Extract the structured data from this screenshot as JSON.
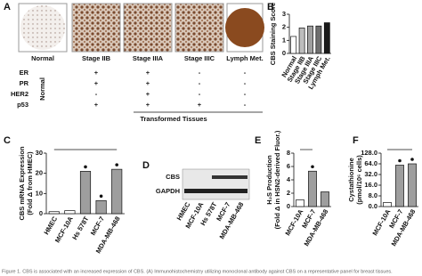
{
  "panel_labels": [
    "A",
    "B",
    "C",
    "D",
    "E",
    "F"
  ],
  "tissue": {
    "images": [
      "Normal",
      "Stage IIB",
      "Stage IIIA",
      "Stage IIIC",
      "Lymph Met."
    ],
    "normal_label": "Normal",
    "rows": [
      {
        "label": "ER",
        "values": [
          "+",
          "+",
          "-",
          "-"
        ]
      },
      {
        "label": "PR",
        "values": [
          "+",
          "+",
          "-",
          "-"
        ]
      },
      {
        "label": "HER2",
        "values": [
          "-",
          "+",
          "-",
          "-"
        ]
      },
      {
        "label": "p53",
        "values": [
          "+",
          "+",
          "+",
          "-"
        ]
      }
    ],
    "group_label": "Transformed Tissues"
  },
  "chart_data": [
    {
      "type": "bar",
      "ylabel": [
        "CBS Staining Score"
      ],
      "categories": [
        "Normal",
        "Stage IIB",
        "Stage IIIA",
        "Stage IIIC",
        "Lymph Met."
      ],
      "values": [
        1.3,
        1.95,
        2.1,
        2.1,
        2.35
      ],
      "colors": [
        "#ffffff",
        "#bdbdbd",
        "#9e9e9e",
        "#6e6e6e",
        "#1a1a1a"
      ],
      "ylim": [
        0,
        3
      ],
      "yticks": [
        0,
        1,
        2,
        3
      ]
    },
    {
      "type": "bar",
      "ylabel": [
        "CBS mRNA Expression",
        "(Fold Δ from HMEC)"
      ],
      "categories": [
        "HMEC",
        "MCF-10A",
        "Hs 578T",
        "MCF-7",
        "MDA-MB-468"
      ],
      "values": [
        1,
        1.5,
        21,
        6.5,
        22
      ],
      "colors": [
        "#ffffff",
        "#ffffff",
        "#9e9e9e",
        "#9e9e9e",
        "#9e9e9e"
      ],
      "ylim": [
        0,
        30
      ],
      "yticks": [
        0,
        10,
        20,
        30
      ]
    },
    {
      "type": "bar",
      "ylabel": [
        "H₂S Production",
        "(Fold Δ in HSN2-derived Fluor.)"
      ],
      "categories": [
        "MCF-10A",
        "MCF-7",
        "MDA-MB-468"
      ],
      "values": [
        1,
        5.3,
        2.2
      ],
      "colors": [
        "#ffffff",
        "#9e9e9e",
        "#9e9e9e"
      ],
      "ylim": [
        0,
        8
      ],
      "yticks": [
        0,
        2,
        4,
        6,
        8
      ]
    },
    {
      "type": "bar",
      "ylabel": [
        "Cystathionine",
        "(pmol/10⁶ cells)"
      ],
      "categories": [
        "MCF-10A",
        "MCF-7",
        "MDA-MB-468"
      ],
      "values": [
        3,
        60,
        64
      ],
      "colors": [
        "#ffffff",
        "#9e9e9e",
        "#9e9e9e"
      ],
      "ylim": [
        0,
        128
      ],
      "yticks": [
        {
          "value": 0,
          "label": "0.0"
        },
        {
          "value": 8,
          "label": "8.0"
        },
        {
          "value": 16,
          "label": "16.0"
        },
        {
          "value": 32,
          "label": "32.0"
        },
        {
          "value": 64,
          "label": "64.0"
        },
        {
          "value": 128,
          "label": "128.0"
        }
      ]
    }
  ],
  "blot": {
    "bands": [
      "CBS",
      "GAPDH"
    ],
    "lanes": [
      "HMEC",
      "MCF-10A",
      "Hs 578T",
      "MCF-7",
      "MDA-MB-468"
    ]
  },
  "caption": "Figure 1. CBS is associated with an increased expression of CBS. (A) Immunohistochemistry utilizing monoclonal antibody against CBS on a representative panel for breast tissues."
}
